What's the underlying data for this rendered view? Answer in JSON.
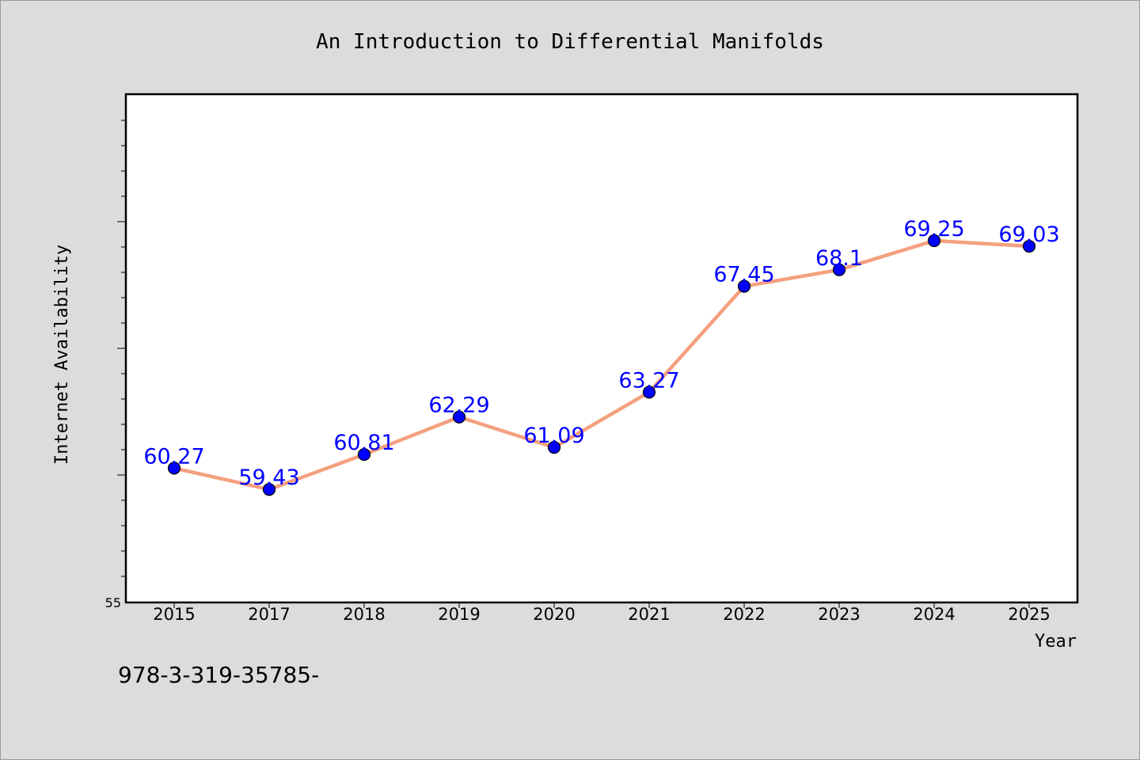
{
  "chart_data": {
    "type": "line",
    "title": "An Introduction to Differential Manifolds",
    "xlabel": "Year",
    "ylabel": "Internet Availability",
    "categories": [
      "2015",
      "2017",
      "2018",
      "2019",
      "2020",
      "2021",
      "2022",
      "2023",
      "2024",
      "2025"
    ],
    "series": [
      {
        "values": [
          60.27,
          59.43,
          60.81,
          62.29,
          61.09,
          63.27,
          67.45,
          68.1,
          69.25,
          69.03
        ],
        "data_labels": [
          "60.27",
          "59.43",
          "60.81",
          "62.29",
          "61.09",
          "63.27",
          "67.45",
          "68.1",
          "69.25",
          "69.03"
        ],
        "line_color": "#f4a07f",
        "marker_color": "#0000ff"
      }
    ],
    "ylim": [
      55,
      75
    ],
    "y_tick_labels": [
      "55"
    ],
    "grid": false,
    "legend": false
  },
  "footer_text": "978-3-319-35785-",
  "colors": {
    "background": "#dcdcdc",
    "plot_background": "#ffffff",
    "data_label": "#0000ff"
  }
}
